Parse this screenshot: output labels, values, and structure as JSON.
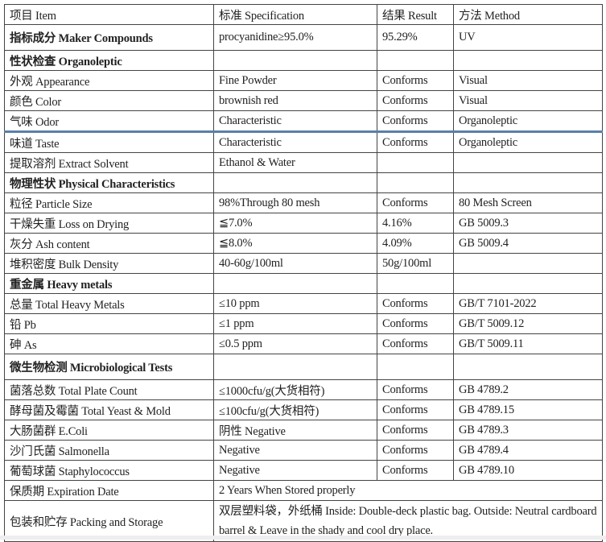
{
  "header": [
    "项目 Item",
    "标准 Specification",
    "结果 Result",
    "方法 Method"
  ],
  "rows": [
    {
      "item": "指标成分 Maker Compounds",
      "spec": "procyanidine≥95.0%",
      "result": "95.29%",
      "method": "UV",
      "section": true,
      "tall": true
    },
    {
      "item": "性状检查 Organoleptic",
      "spec": "",
      "result": "",
      "method": "",
      "section": true
    },
    {
      "item": "外观 Appearance",
      "spec": "Fine Powder",
      "result": "Conforms",
      "method": "Visual"
    },
    {
      "item": "颜色 Color",
      "spec": "brownish red",
      "result": "Conforms",
      "method": "Visual"
    },
    {
      "item": "气味 Odor",
      "spec": "Characteristic",
      "result": "Conforms",
      "method": "Organoleptic"
    },
    {
      "item": "味道 Taste",
      "spec": "Characteristic",
      "result": "Conforms",
      "method": "Organoleptic"
    },
    {
      "item": "提取溶剂 Extract Solvent",
      "spec": "Ethanol & Water",
      "result": "",
      "method": ""
    },
    {
      "item": "物理性状 Physical Characteristics",
      "spec": "",
      "result": "",
      "method": "",
      "section": true
    },
    {
      "item": "粒径 Particle Size",
      "spec": "98%Through 80 mesh",
      "result": "Conforms",
      "method": "80 Mesh Screen"
    },
    {
      "item": "干燥失重 Loss on Drying",
      "spec": "≦7.0%",
      "result": "4.16%",
      "method": "GB 5009.3"
    },
    {
      "item": "灰分 Ash content",
      "spec": "≦8.0%",
      "result": "4.09%",
      "method": "GB 5009.4"
    },
    {
      "item": "堆积密度  Bulk Density",
      "spec": "40-60g/100ml",
      "result": "50g/100ml",
      "method": ""
    },
    {
      "item": "重金属 Heavy metals",
      "spec": "",
      "result": "",
      "method": "",
      "section": true
    },
    {
      "item": "总量 Total Heavy Metals",
      "spec": "≤10 ppm",
      "result": "Conforms",
      "method": "GB/T 7101-2022"
    },
    {
      "item": "铅 Pb",
      "spec": "≤1 ppm",
      "result": "Conforms",
      "method": "GB/T 5009.12"
    },
    {
      "item": "砷 As",
      "spec": "≤0.5 ppm",
      "result": "Conforms",
      "method": "GB/T 5009.11"
    },
    {
      "item": "微生物检测 Microbiological Tests",
      "spec": "",
      "result": "",
      "method": "",
      "section": true,
      "tall": true
    },
    {
      "item": "菌落总数 Total Plate Count",
      "spec": "≤1000cfu/g(大货相符)",
      "result": "Conforms",
      "method": "GB 4789.2"
    },
    {
      "item": "酵母菌及霉菌 Total Yeast & Mold",
      "spec": "≤100cfu/g(大货相符)",
      "result": "Conforms",
      "method": "GB 4789.15"
    },
    {
      "item": "大肠菌群 E.Coli",
      "spec": "阴性 Negative",
      "result": "Conforms",
      "method": "GB 4789.3"
    },
    {
      "item": "沙门氏菌 Salmonella",
      "spec": "Negative",
      "result": "Conforms",
      "method": "GB 4789.4"
    },
    {
      "item": "葡萄球菌 Staphylococcus",
      "spec": "Negative",
      "result": "Conforms",
      "method": "GB 4789.10"
    }
  ],
  "expiration": {
    "item": "保质期 Expiration Date",
    "value": "2 Years When Stored properly"
  },
  "packing": {
    "item": "包装和贮存 Packing and Storage",
    "value": "双层塑料袋，外纸桶 Inside: Double-deck plastic bag. Outside: Neutral cardboard barrel & Leave in the shady and cool dry place."
  }
}
